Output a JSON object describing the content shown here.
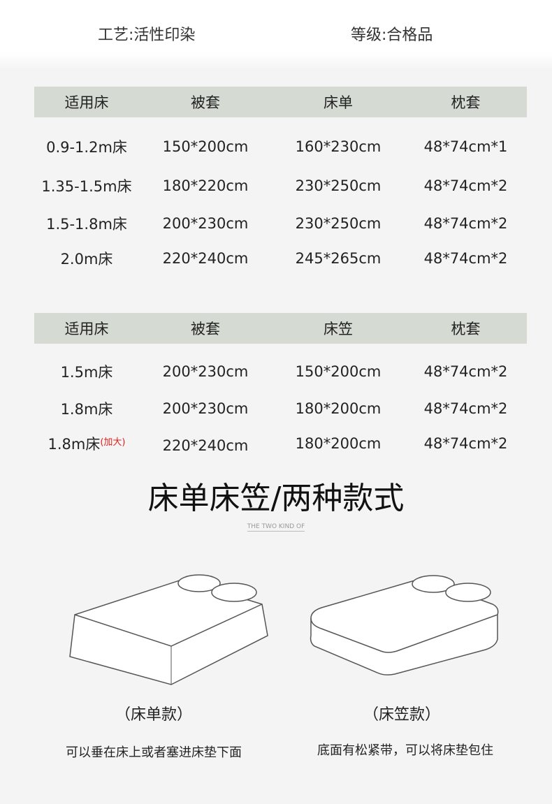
{
  "specs": {
    "craft": "工艺:活性印染",
    "grade": "等级:合格品"
  },
  "table1": {
    "headers": [
      "适用床",
      "被套",
      "床单",
      "枕套"
    ],
    "rows": [
      [
        "0.9-1.2m床",
        "150*200cm",
        "160*230cm",
        "48*74cm*1"
      ],
      [
        "1.35-1.5m床",
        "180*220cm",
        "230*250cm",
        "48*74cm*2"
      ],
      [
        "1.5-1.8m床",
        "200*230cm",
        "230*250cm",
        "48*74cm*2"
      ],
      [
        "2.0m床",
        "220*240cm",
        "245*265cm",
        "48*74cm*2"
      ]
    ]
  },
  "table2": {
    "headers": [
      "适用床",
      "被套",
      "床笠",
      "枕套"
    ],
    "rows": [
      [
        "1.5m床",
        "200*230cm",
        "150*200cm",
        "48*74cm*2"
      ],
      [
        "1.8m床",
        "200*230cm",
        "180*200cm",
        "48*74cm*2"
      ],
      [
        "1.8m床",
        "220*240cm",
        "180*200cm",
        "48*74cm*2"
      ]
    ],
    "note": "(加大)"
  },
  "section": {
    "title": "床单床笠/两种款式",
    "subtitle": "THE TWO KIND OF"
  },
  "styles": [
    {
      "caption": "（床单款）",
      "desc": "可以垂在床上或者塞进床垫下面"
    },
    {
      "caption": "（床笠款）",
      "desc": "底面有松紧带，可以将床垫包住"
    }
  ],
  "colors": {
    "header_band": "#d5dbd3",
    "note": "#e0201c"
  }
}
